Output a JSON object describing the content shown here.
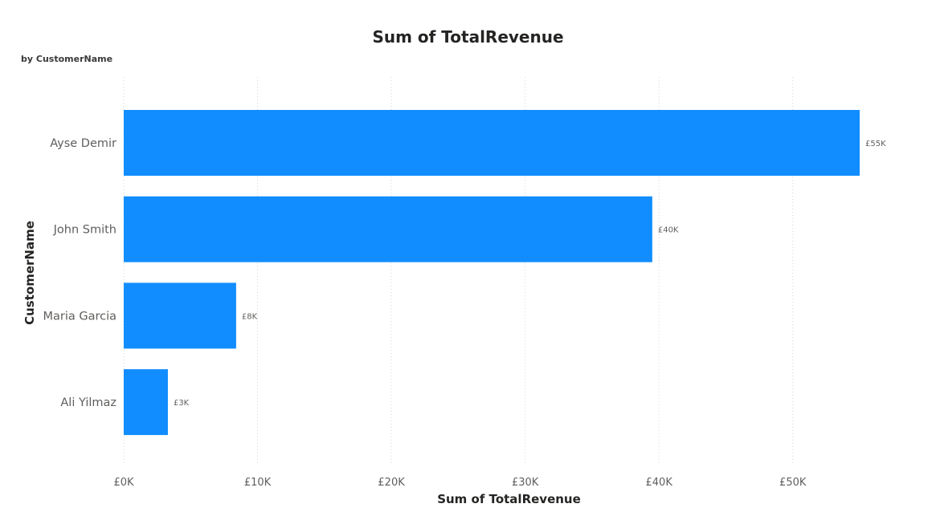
{
  "chart_data": {
    "type": "bar",
    "orientation": "horizontal",
    "title": "Sum of TotalRevenue",
    "subtitle": "by CustomerName",
    "xlabel": "Sum of TotalRevenue",
    "ylabel": "CustomerName",
    "categories": [
      "Ayse Demir",
      "John Smith",
      "Maria Garcia",
      "Ali Yilmaz"
    ],
    "values": [
      55000,
      39500,
      8400,
      3300
    ],
    "data_labels": [
      "£55K",
      "£40K",
      "£8K",
      "£3K"
    ],
    "xlim": [
      0,
      55000
    ],
    "xticks": [
      0,
      10000,
      20000,
      30000,
      40000,
      50000
    ],
    "xtick_labels": [
      "£0K",
      "£10K",
      "£20K",
      "£30K",
      "£40K",
      "£50K"
    ],
    "grid": "vertical dotted",
    "colors": {
      "bar": "#118DFF",
      "grid": "#d4d4d4",
      "text": "#252423",
      "muted_text": "#605e5c"
    }
  }
}
